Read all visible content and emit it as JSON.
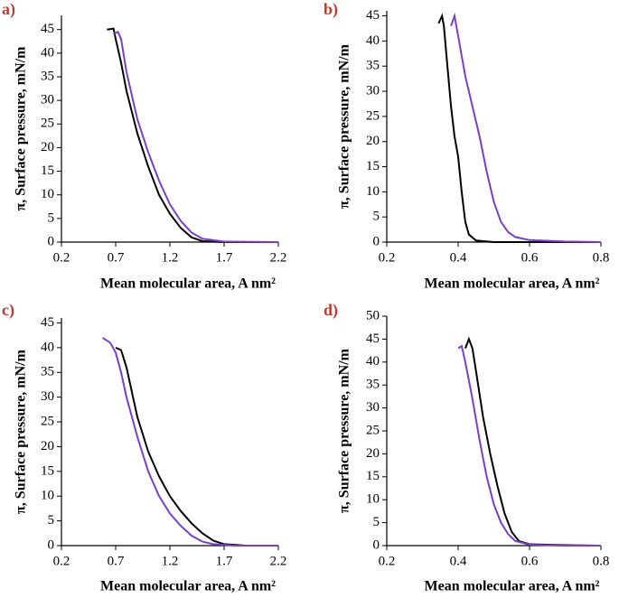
{
  "chart_data": [
    {
      "type": "line",
      "panel_label": "a)",
      "y_label": "π, Surface pressure, mN/m",
      "x_label": "Mean molecular area, A nm²",
      "xlim": [
        0.2,
        2.2
      ],
      "ylim": [
        0,
        48
      ],
      "xticks": [
        0.2,
        0.7,
        1.2,
        1.7,
        2.2
      ],
      "yticks": [
        0,
        5,
        10,
        15,
        20,
        25,
        30,
        35,
        40,
        45
      ],
      "series": [
        {
          "color": "#000000",
          "x": [
            0.62,
            0.68,
            0.7,
            0.75,
            0.8,
            0.9,
            1.0,
            1.1,
            1.2,
            1.3,
            1.4,
            1.5,
            1.7,
            2.2
          ],
          "values": [
            45,
            45.2,
            43,
            38,
            32,
            23,
            16,
            10,
            6,
            3,
            1,
            0.2,
            0,
            0
          ]
        },
        {
          "color": "#7b3fc4",
          "x": [
            0.68,
            0.72,
            0.75,
            0.8,
            0.9,
            1.0,
            1.1,
            1.2,
            1.3,
            1.4,
            1.5,
            1.7,
            2.2
          ],
          "values": [
            44,
            44.5,
            43,
            36,
            26,
            19,
            13,
            8,
            4.5,
            2,
            0.7,
            0.1,
            0
          ]
        }
      ]
    },
    {
      "type": "line",
      "panel_label": "b)",
      "y_label": "π, Surface pressure, mN/m",
      "x_label": "Mean molecular area, A nm²",
      "xlim": [
        0.2,
        0.8
      ],
      "ylim": [
        0,
        46
      ],
      "xticks": [
        0.2,
        0.4,
        0.6,
        0.8
      ],
      "yticks": [
        0,
        5,
        10,
        15,
        20,
        25,
        30,
        35,
        40,
        45
      ],
      "series": [
        {
          "color": "#000000",
          "x": [
            0.345,
            0.355,
            0.36,
            0.37,
            0.38,
            0.39,
            0.4,
            0.41,
            0.42,
            0.43,
            0.45,
            0.5,
            0.8
          ],
          "values": [
            43.5,
            45,
            43,
            35,
            27,
            21,
            17,
            10,
            4,
            1.5,
            0.3,
            0,
            0
          ]
        },
        {
          "color": "#7b3fc4",
          "x": [
            0.38,
            0.39,
            0.4,
            0.42,
            0.44,
            0.46,
            0.48,
            0.5,
            0.52,
            0.54,
            0.56,
            0.6,
            0.7,
            0.8
          ],
          "values": [
            43,
            45,
            41,
            33,
            27,
            21,
            14,
            8,
            4,
            2,
            1,
            0.4,
            0.1,
            0
          ]
        }
      ]
    },
    {
      "type": "line",
      "panel_label": "c)",
      "y_label": "π, Surface pressure, mN/m",
      "x_label": "Mean molecular area, A nm²",
      "xlim": [
        0.2,
        2.2
      ],
      "ylim": [
        0,
        46
      ],
      "xticks": [
        0.2,
        0.7,
        1.2,
        1.7,
        2.2
      ],
      "yticks": [
        0,
        5,
        10,
        15,
        20,
        25,
        30,
        35,
        40,
        45
      ],
      "series": [
        {
          "color": "#000000",
          "x": [
            0.7,
            0.75,
            0.8,
            0.9,
            1.0,
            1.1,
            1.2,
            1.3,
            1.4,
            1.5,
            1.6,
            1.7,
            1.9,
            2.2
          ],
          "values": [
            40,
            39.5,
            36,
            26,
            19,
            14,
            10,
            7,
            4.5,
            2.5,
            1,
            0.3,
            0,
            0
          ]
        },
        {
          "color": "#7b3fc4",
          "x": [
            0.58,
            0.65,
            0.7,
            0.75,
            0.8,
            0.9,
            1.0,
            1.1,
            1.2,
            1.3,
            1.4,
            1.5,
            1.6,
            1.8,
            2.2
          ],
          "values": [
            42,
            41,
            39,
            35,
            30,
            22,
            15,
            10,
            6.5,
            4,
            2,
            0.8,
            0.3,
            0,
            0
          ]
        }
      ]
    },
    {
      "type": "line",
      "panel_label": "d)",
      "y_label": "π, Surface pressure, mN/m",
      "x_label": "Mean molecular area, A nm²",
      "xlim": [
        0.2,
        0.8
      ],
      "ylim": [
        0,
        50
      ],
      "xticks": [
        0.2,
        0.4,
        0.6,
        0.8
      ],
      "yticks": [
        0,
        5,
        10,
        15,
        20,
        25,
        30,
        35,
        40,
        45,
        50
      ],
      "series": [
        {
          "color": "#000000",
          "x": [
            0.42,
            0.43,
            0.44,
            0.45,
            0.47,
            0.49,
            0.51,
            0.53,
            0.55,
            0.57,
            0.6,
            0.7,
            0.8
          ],
          "values": [
            43,
            45,
            43,
            38,
            28,
            20,
            13,
            7,
            3,
            1,
            0.3,
            0.1,
            0
          ]
        },
        {
          "color": "#7b3fc4",
          "x": [
            0.4,
            0.41,
            0.42,
            0.44,
            0.46,
            0.48,
            0.5,
            0.52,
            0.54,
            0.56,
            0.6,
            0.7,
            0.8
          ],
          "values": [
            43,
            43.5,
            40,
            32,
            23,
            15,
            9,
            5,
            2.5,
            1,
            0.2,
            0,
            0
          ]
        }
      ]
    }
  ]
}
